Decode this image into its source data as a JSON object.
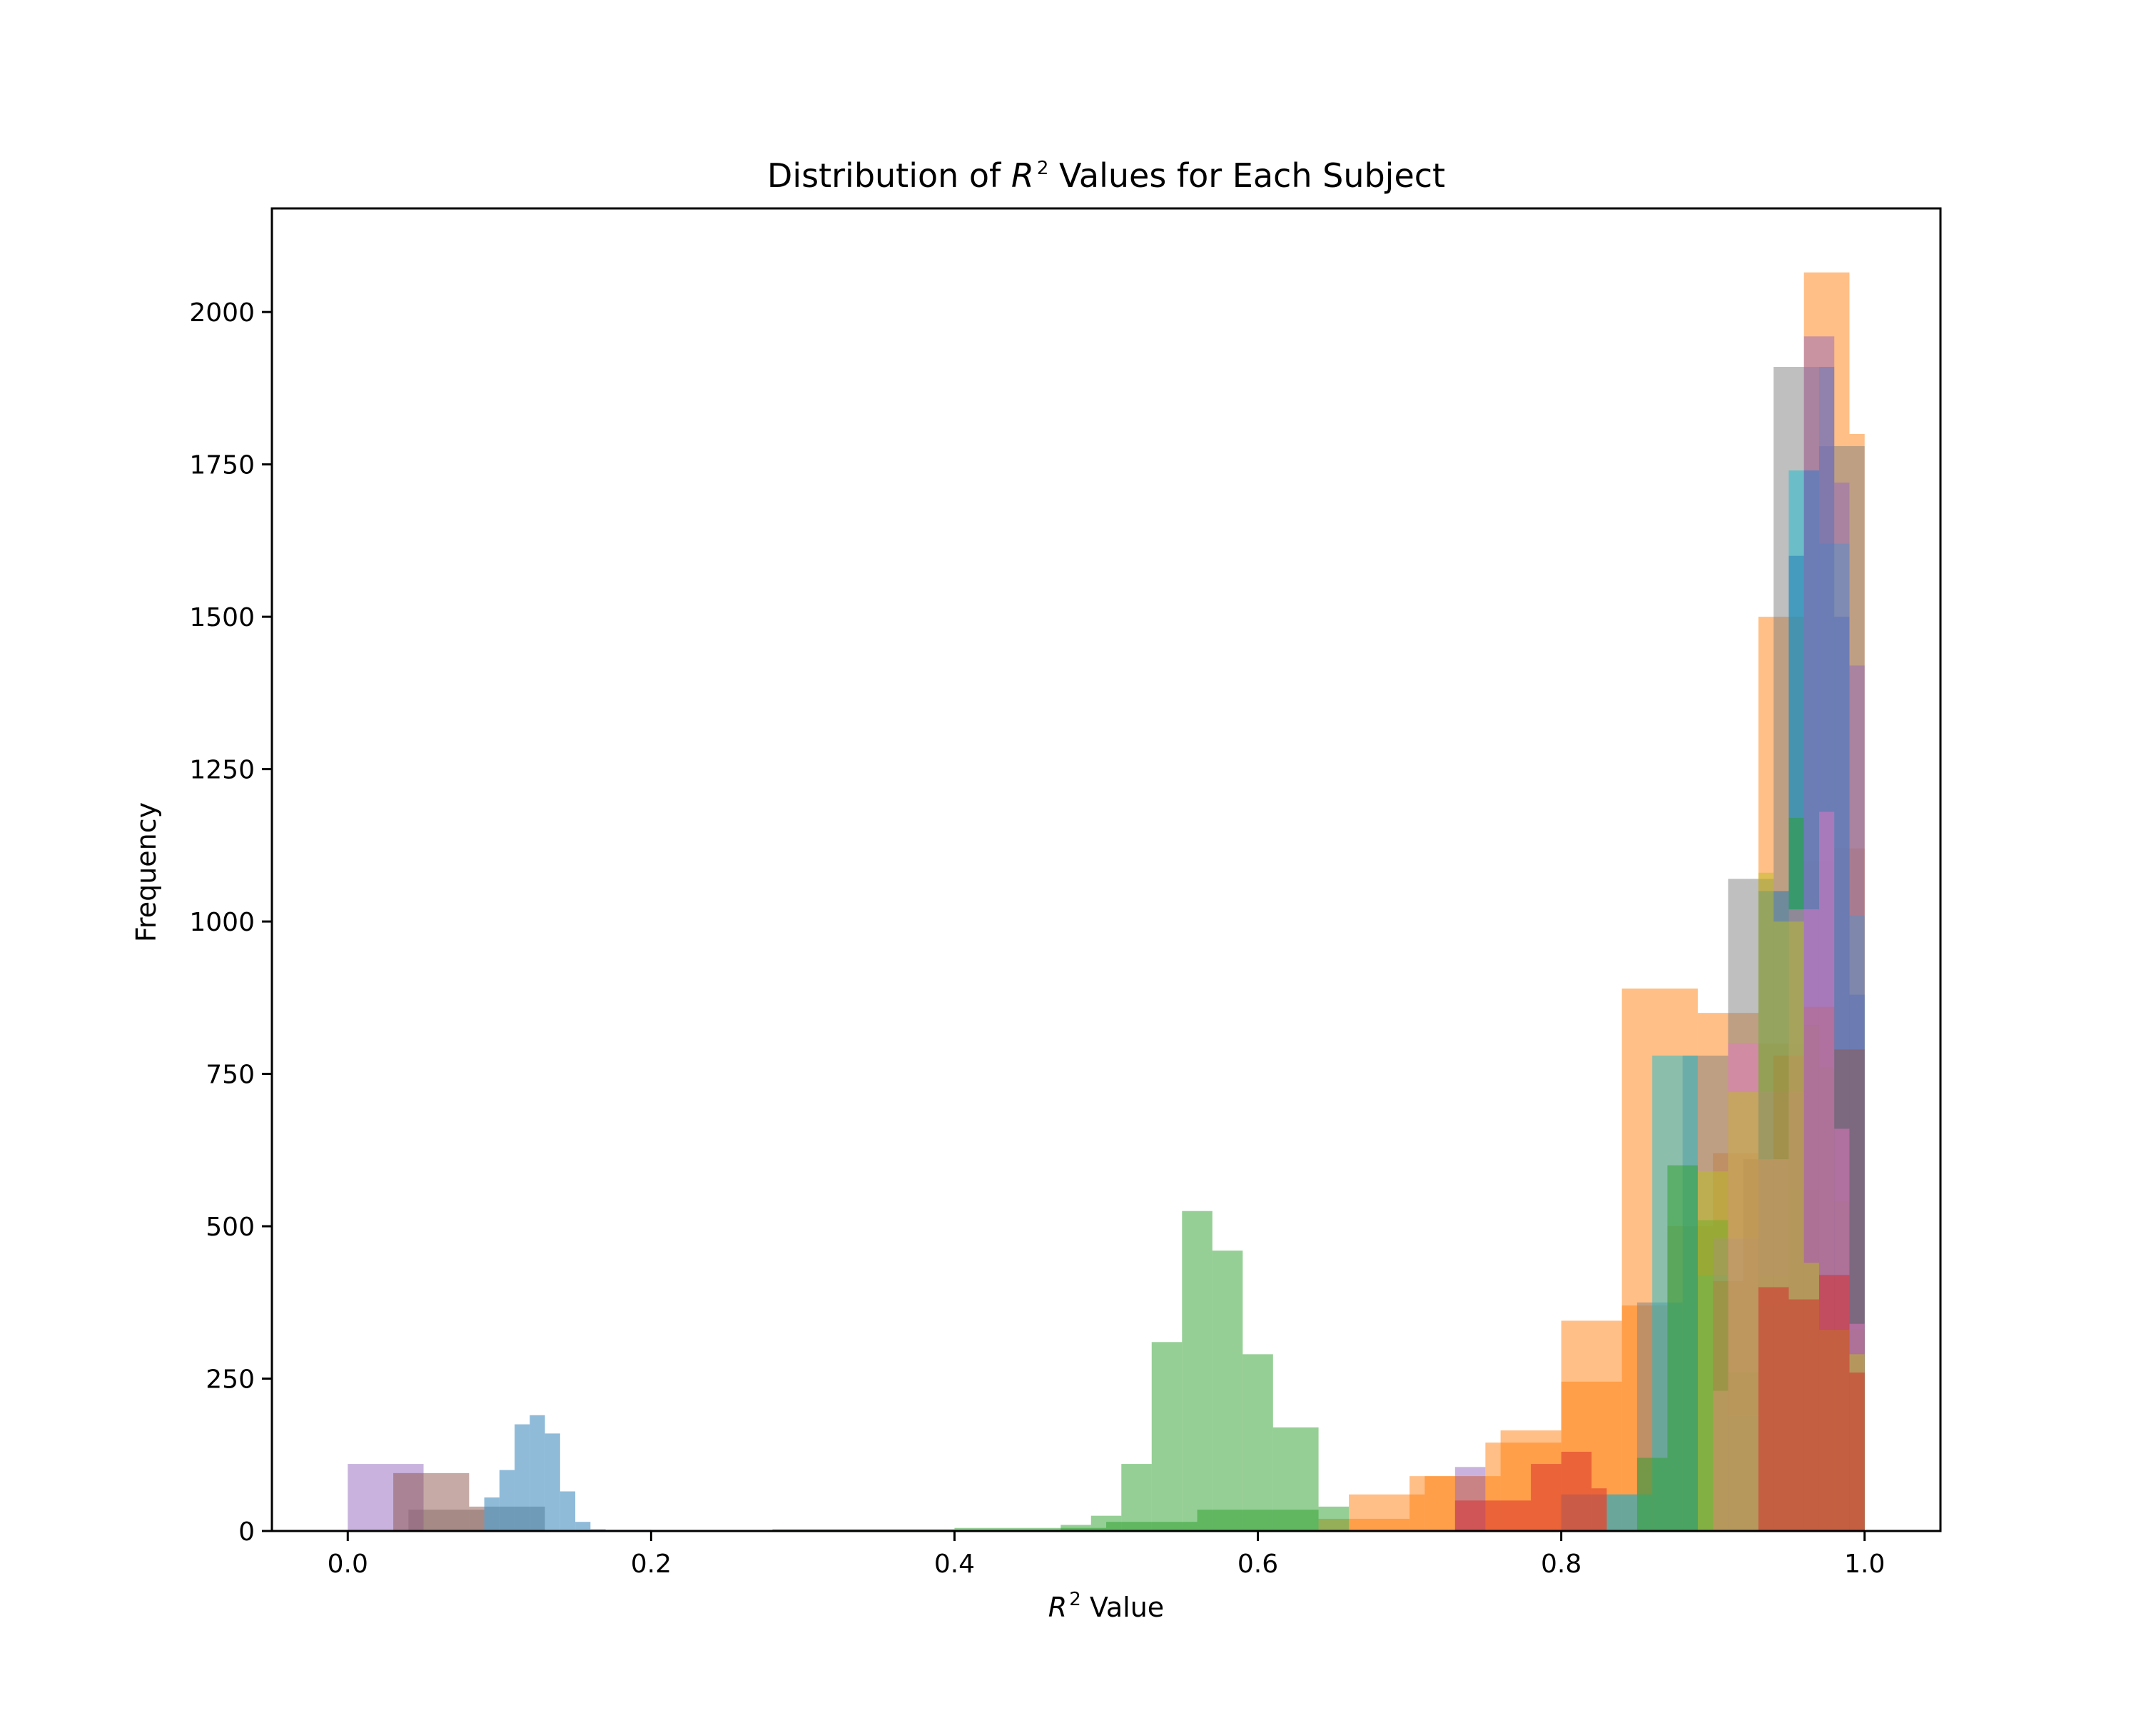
{
  "chart_data": {
    "type": "histogram",
    "title": "Distribution of R² Values for Each Subject",
    "title_parts": {
      "prefix": "Distribution of ",
      "var": "R",
      "sup": "2",
      "suffix": " Values for Each Subject"
    },
    "xlabel": "R² Value",
    "xlabel_parts": {
      "var": "R",
      "sup": "2",
      "suffix": " Value"
    },
    "ylabel": "Frequency",
    "xlim": [
      -0.05,
      1.05
    ],
    "ylim": [
      0,
      2170
    ],
    "x_ticks": [
      0.0,
      0.2,
      0.4,
      0.6,
      0.8,
      1.0
    ],
    "x_tick_labels": [
      "0.0",
      "0.2",
      "0.4",
      "0.6",
      "0.8",
      "1.0"
    ],
    "y_ticks": [
      0,
      250,
      500,
      750,
      1000,
      1250,
      1500,
      1750,
      2000
    ],
    "y_tick_labels": [
      "0",
      "250",
      "500",
      "750",
      "1000",
      "1250",
      "1500",
      "1750",
      "2000"
    ],
    "grid": false,
    "legend": "none",
    "bar_alpha": 0.5,
    "series": [
      {
        "color": "#ff7f0e",
        "edges": [
          0.66,
          0.71,
          0.76,
          0.8,
          0.84,
          0.89,
          0.93,
          0.96,
          0.99,
          1.0
        ],
        "counts": [
          60,
          90,
          165,
          345,
          890,
          850,
          1500,
          2065,
          1800
        ]
      },
      {
        "color": "#ff7f0e",
        "edges": [
          0.64,
          0.7,
          0.75,
          0.8,
          0.84,
          0.87,
          0.9,
          0.93,
          0.96,
          0.98,
          1.0
        ],
        "counts": [
          20,
          90,
          145,
          245,
          370,
          500,
          620,
          800,
          1100,
          1120
        ]
      },
      {
        "color": "#7f7f7f",
        "edges": [
          0.04,
          0.09,
          0.13,
          0.8,
          0.85,
          0.88,
          0.91,
          0.94,
          0.97,
          1.0
        ],
        "counts": [
          35,
          40,
          0,
          60,
          375,
          780,
          1070,
          1910,
          1780
        ]
      },
      {
        "color": "#17becf",
        "edges": [
          0.83,
          0.86,
          0.89,
          0.91,
          0.93,
          0.95,
          0.97,
          0.99,
          1.0
        ],
        "counts": [
          60,
          780,
          420,
          190,
          370,
          1740,
          1620,
          1010
        ]
      },
      {
        "color": "#1f77b4",
        "edges": [
          0.09,
          0.1,
          0.11,
          0.12,
          0.13,
          0.14,
          0.15,
          0.16,
          0.17,
          0.2,
          0.25,
          0.93,
          0.95,
          0.96,
          0.97,
          0.98,
          0.99,
          1.0
        ],
        "counts": [
          55,
          100,
          175,
          190,
          160,
          65,
          15,
          3,
          2,
          1,
          0,
          1050,
          1600,
          1740,
          1910,
          1500,
          880
        ]
      },
      {
        "color": "#2ca02c",
        "edges": [
          0.47,
          0.49,
          0.51,
          0.53,
          0.55,
          0.57,
          0.59,
          0.61,
          0.64,
          0.66,
          0.95,
          0.96,
          0.97,
          0.98,
          0.99,
          1.0
        ],
        "counts": [
          10,
          25,
          110,
          310,
          525,
          460,
          290,
          170,
          0,
          0,
          1170,
          830,
          760,
          540,
          230
        ]
      },
      {
        "color": "#2ca02c",
        "edges": [
          0.28,
          0.4,
          0.5,
          0.56,
          0.64,
          0.66,
          0.85,
          0.87,
          0.89,
          0.91,
          0.93,
          0.95,
          0.97,
          1.0
        ],
        "counts": [
          3,
          5,
          15,
          35,
          40,
          0,
          120,
          600,
          510,
          260,
          420,
          560,
          330
        ]
      },
      {
        "color": "#9467bd",
        "edges": [
          0.0,
          0.05,
          0.09,
          0.73,
          0.75,
          0.9,
          0.93,
          0.96,
          0.98,
          0.99,
          1.0
        ],
        "counts": [
          110,
          0,
          0,
          105,
          0,
          480,
          720,
          1960,
          1720,
          1420
        ]
      },
      {
        "color": "#8c564b",
        "edges": [
          0.03,
          0.08,
          0.09,
          0.9,
          0.92,
          0.94,
          0.96,
          0.98,
          1.0
        ],
        "counts": [
          95,
          40,
          0,
          410,
          610,
          780,
          860,
          790
        ]
      },
      {
        "color": "#e377c2",
        "edges": [
          0.9,
          0.91,
          0.93,
          0.95,
          0.97,
          0.98,
          0.99,
          1.0
        ],
        "counts": [
          230,
          800,
          610,
          1020,
          1180,
          660,
          340
        ]
      },
      {
        "color": "#bcbd22",
        "edges": [
          0.89,
          0.91,
          0.93,
          0.94,
          0.96,
          0.97,
          0.99,
          1.0
        ],
        "counts": [
          590,
          720,
          1080,
          1000,
          440,
          330,
          290
        ]
      },
      {
        "color": "#d62728",
        "edges": [
          0.73,
          0.78,
          0.8,
          0.82,
          0.83,
          0.93,
          0.95,
          0.97,
          0.99,
          1.0
        ],
        "counts": [
          50,
          110,
          130,
          70,
          0,
          400,
          380,
          420,
          260
        ]
      }
    ]
  }
}
